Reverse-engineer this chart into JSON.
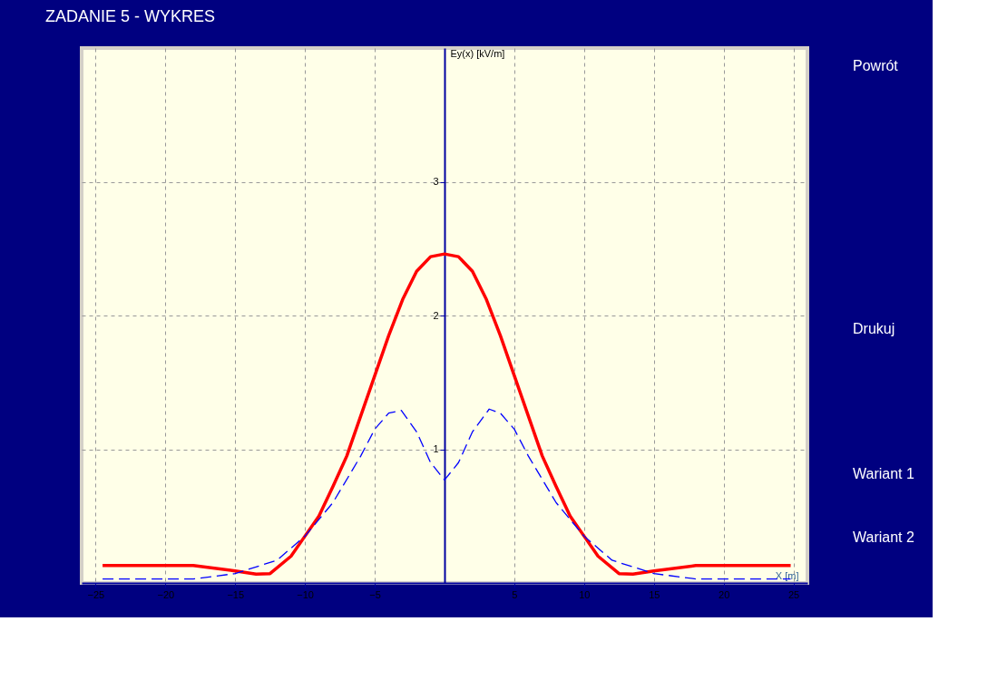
{
  "chart_data": {
    "type": "line",
    "title": "ZADANIE 5 - WYKRES",
    "xlabel": "X [m]",
    "ylabel": "Ey(x) [kV/m]",
    "xlim": [
      -26,
      26
    ],
    "ylim": [
      0,
      4
    ],
    "xticks": [
      -25,
      -20,
      -15,
      -10,
      -5,
      5,
      10,
      15,
      20,
      25
    ],
    "yticks": [
      1,
      2,
      3
    ],
    "grid": true,
    "annotations": [
      "Powrót",
      "Drukuj",
      "Wariant 1",
      "Wariant 2"
    ],
    "series": [
      {
        "color": "#ff0000",
        "line_style": "solid",
        "x": [
          -24.5,
          -18,
          -15,
          -13.5,
          -12.5,
          -11,
          -10,
          -9,
          -8,
          -7,
          -6,
          -5,
          -4,
          -3,
          -2,
          -1,
          0,
          1,
          2,
          3,
          4,
          5,
          6,
          7,
          8,
          9,
          10,
          11,
          12.5,
          13.5,
          15,
          18,
          24.8
        ],
        "values": [
          0.13,
          0.13,
          0.09,
          0.066,
          0.07,
          0.2,
          0.35,
          0.5,
          0.72,
          0.95,
          1.25,
          1.55,
          1.85,
          2.12,
          2.33,
          2.44,
          2.46,
          2.44,
          2.33,
          2.12,
          1.85,
          1.55,
          1.25,
          0.95,
          0.72,
          0.5,
          0.35,
          0.2,
          0.07,
          0.066,
          0.09,
          0.13,
          0.13
        ]
      },
      {
        "color": "#0000ff",
        "line_style": "dashed",
        "x": [
          -24.5,
          -18,
          -15,
          -12,
          -10,
          -8,
          -6,
          -5,
          -4,
          -3.1,
          -2,
          -1,
          0,
          1,
          2,
          3.2,
          4,
          5,
          6,
          8,
          10,
          12,
          15,
          18,
          24.8
        ],
        "values": [
          0.03,
          0.03,
          0.07,
          0.17,
          0.35,
          0.6,
          0.95,
          1.15,
          1.27,
          1.29,
          1.13,
          0.9,
          0.77,
          0.9,
          1.13,
          1.3,
          1.27,
          1.15,
          0.95,
          0.6,
          0.35,
          0.17,
          0.07,
          0.03,
          0.03
        ]
      }
    ]
  }
}
